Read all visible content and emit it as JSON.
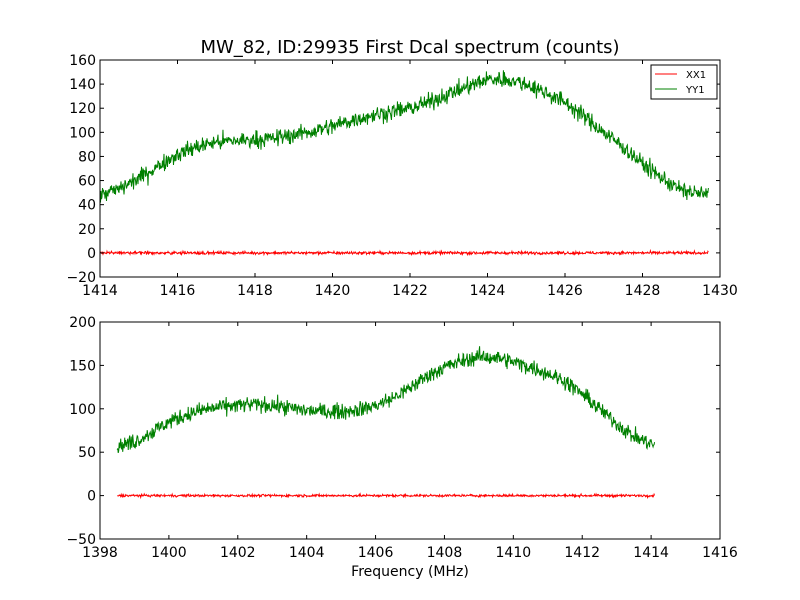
{
  "figure": {
    "title": "MW_82, ID:29935 First Dcal spectrum (counts)",
    "xlabel": "Frequency (MHz)"
  },
  "chart_data": [
    {
      "type": "line",
      "title": "MW_82, ID:29935 First Dcal spectrum (counts)",
      "xlabel": "",
      "ylabel": "",
      "xlim": [
        1414,
        1430
      ],
      "ylim": [
        -20,
        160
      ],
      "xticks": [
        1414,
        1416,
        1418,
        1420,
        1422,
        1424,
        1426,
        1428,
        1430
      ],
      "yticks": [
        -20,
        0,
        20,
        40,
        60,
        80,
        100,
        120,
        140,
        160
      ],
      "grid": false,
      "legend": "top-right",
      "series": [
        {
          "name": "XX1",
          "color": "#ff0000",
          "x_range": [
            1414.0,
            1429.7
          ],
          "profile_x": [
            1414.0,
            1429.7
          ],
          "profile_y": [
            0,
            0
          ],
          "noise": 0.6
        },
        {
          "name": "YY1",
          "color": "#008000",
          "x_range": [
            1414.0,
            1429.7
          ],
          "profile_x": [
            1414.0,
            1414.5,
            1415.0,
            1415.5,
            1416.0,
            1416.5,
            1417.0,
            1417.5,
            1418.0,
            1418.5,
            1419.0,
            1419.5,
            1420.0,
            1420.5,
            1421.0,
            1421.5,
            1422.0,
            1422.5,
            1423.0,
            1423.5,
            1424.0,
            1424.5,
            1425.0,
            1425.5,
            1426.0,
            1426.5,
            1427.0,
            1427.5,
            1428.0,
            1428.5,
            1429.0,
            1429.7
          ],
          "profile_y": [
            48,
            53,
            62,
            72,
            82,
            88,
            92,
            93,
            94,
            95,
            98,
            101,
            105,
            110,
            114,
            117,
            120,
            125,
            132,
            138,
            144,
            144,
            140,
            133,
            125,
            113,
            100,
            88,
            74,
            62,
            52,
            48
          ],
          "noise": 3.5
        }
      ]
    },
    {
      "type": "line",
      "title": "",
      "xlabel": "Frequency (MHz)",
      "ylabel": "",
      "xlim": [
        1398,
        1416
      ],
      "ylim": [
        -50,
        200
      ],
      "xticks": [
        1398,
        1400,
        1402,
        1404,
        1406,
        1408,
        1410,
        1412,
        1414,
        1416
      ],
      "yticks": [
        -50,
        0,
        50,
        100,
        150,
        200
      ],
      "grid": false,
      "series": [
        {
          "name": "XX1",
          "color": "#ff0000",
          "x_range": [
            1398.5,
            1414.1
          ],
          "profile_x": [
            1398.5,
            1414.1
          ],
          "profile_y": [
            0,
            0
          ],
          "noise": 0.7
        },
        {
          "name": "YY1",
          "color": "#008000",
          "x_range": [
            1398.5,
            1414.1
          ],
          "profile_x": [
            1398.5,
            1399.0,
            1399.5,
            1400.0,
            1400.5,
            1401.0,
            1401.5,
            1402.0,
            1402.5,
            1403.0,
            1403.5,
            1404.0,
            1404.5,
            1405.0,
            1405.5,
            1406.0,
            1406.5,
            1407.0,
            1407.5,
            1408.0,
            1408.5,
            1409.0,
            1409.5,
            1410.0,
            1410.5,
            1411.0,
            1411.5,
            1412.0,
            1412.5,
            1413.0,
            1413.5,
            1414.1
          ],
          "profile_y": [
            57,
            62,
            73,
            85,
            93,
            99,
            102,
            104,
            105,
            104,
            101,
            98,
            97,
            97,
            99,
            104,
            112,
            124,
            138,
            148,
            155,
            160,
            159,
            154,
            148,
            141,
            132,
            117,
            100,
            83,
            68,
            58
          ],
          "noise": 4.5
        }
      ]
    }
  ]
}
